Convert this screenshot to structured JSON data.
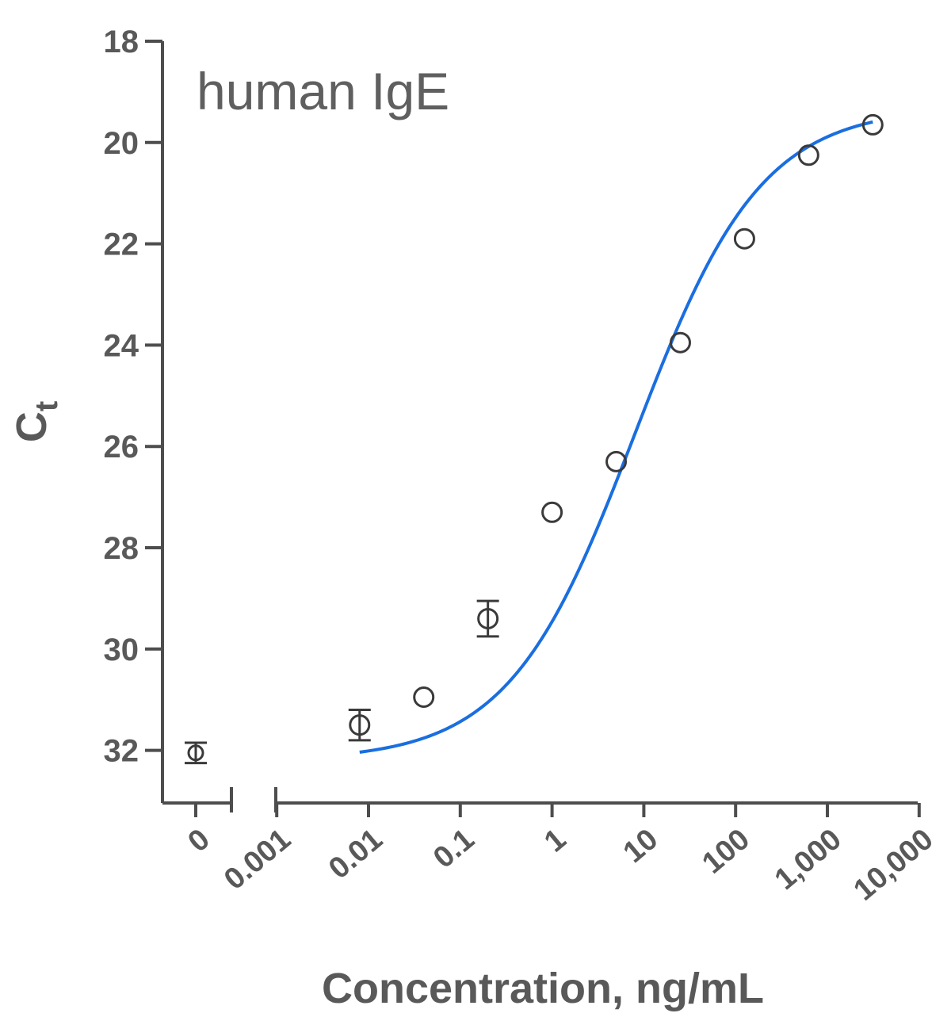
{
  "chart_data": {
    "type": "scatter",
    "title": "human IgE",
    "xlabel": "Concentration, ng/mL",
    "ylabel_main": "C",
    "ylabel_sub": "t",
    "x_scale": "log",
    "x_broken_axis": true,
    "y_inverted": true,
    "ylim": [
      18,
      33
    ],
    "yticks": [
      18,
      20,
      22,
      24,
      26,
      28,
      30,
      32
    ],
    "xticks_log": [
      0.001,
      0.01,
      0.1,
      1,
      10,
      100,
      1000,
      10000
    ],
    "xtick_labels": [
      "0",
      "0.001",
      "0.01",
      "0.1",
      "1",
      "10",
      "100",
      "1,000",
      "10,000"
    ],
    "zero_point": {
      "x": 0,
      "y": 32.05,
      "err": 0.2
    },
    "points": [
      {
        "x": 0.008,
        "y": 31.5,
        "err": 0.3
      },
      {
        "x": 0.04,
        "y": 30.95,
        "err": 0
      },
      {
        "x": 0.2,
        "y": 29.4,
        "err": 0.35
      },
      {
        "x": 1,
        "y": 27.3,
        "err": 0
      },
      {
        "x": 5,
        "y": 26.3,
        "err": 0
      },
      {
        "x": 25,
        "y": 23.95,
        "err": 0
      },
      {
        "x": 125,
        "y": 21.9,
        "err": 0
      },
      {
        "x": 625,
        "y": 20.25,
        "err": 0
      },
      {
        "x": 3125,
        "y": 19.65,
        "err": 0
      }
    ],
    "fit_curve": {
      "type": "4PL",
      "x_range": [
        0.008,
        3125
      ],
      "top": 32.2,
      "bottom": 19.3,
      "ec50": 8,
      "hill": 0.63
    },
    "colors": {
      "fit": "#1a6ee0",
      "axis": "#4d4d4d",
      "marker": "#3a3a3a",
      "text": "#595959"
    },
    "grid": false,
    "legend": "none"
  }
}
